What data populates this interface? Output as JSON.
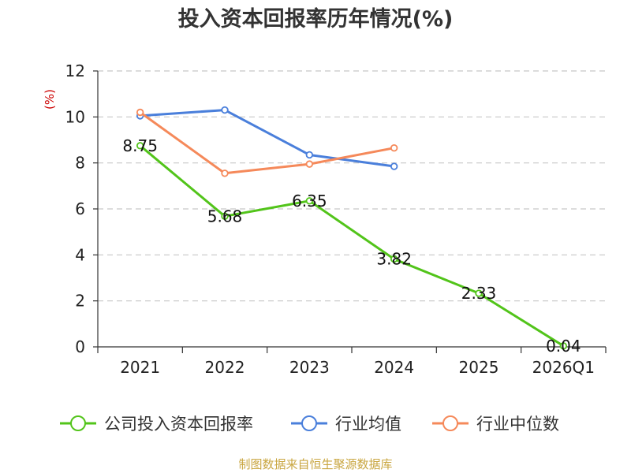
{
  "chart_data": {
    "type": "line",
    "title": "投入资本回报率历年情况(%)",
    "ylabel": "(%)",
    "xlabel": "",
    "categories": [
      "2021",
      "2022",
      "2023",
      "2024",
      "2025",
      "2026Q1"
    ],
    "ylim": [
      0,
      12
    ],
    "yticks": [
      "0",
      "2",
      "4",
      "6",
      "8",
      "10",
      "12"
    ],
    "grid": true,
    "legend_position": "bottom",
    "series": [
      {
        "name": "公司投入资本回报率",
        "color": "#52c41a",
        "values": [
          8.75,
          5.68,
          6.35,
          3.82,
          2.33,
          0.04
        ],
        "labels": [
          "8.75",
          "5.68",
          "6.35",
          "3.82",
          "2.33",
          "0.04"
        ]
      },
      {
        "name": "行业均值",
        "color": "#4a7fdb",
        "values": [
          10.05,
          10.3,
          8.35,
          7.85,
          null,
          null
        ]
      },
      {
        "name": "行业中位数",
        "color": "#f5895a",
        "values": [
          10.2,
          7.55,
          7.95,
          8.65,
          null,
          null
        ]
      }
    ]
  },
  "source": "制图数据来自恒生聚源数据库"
}
